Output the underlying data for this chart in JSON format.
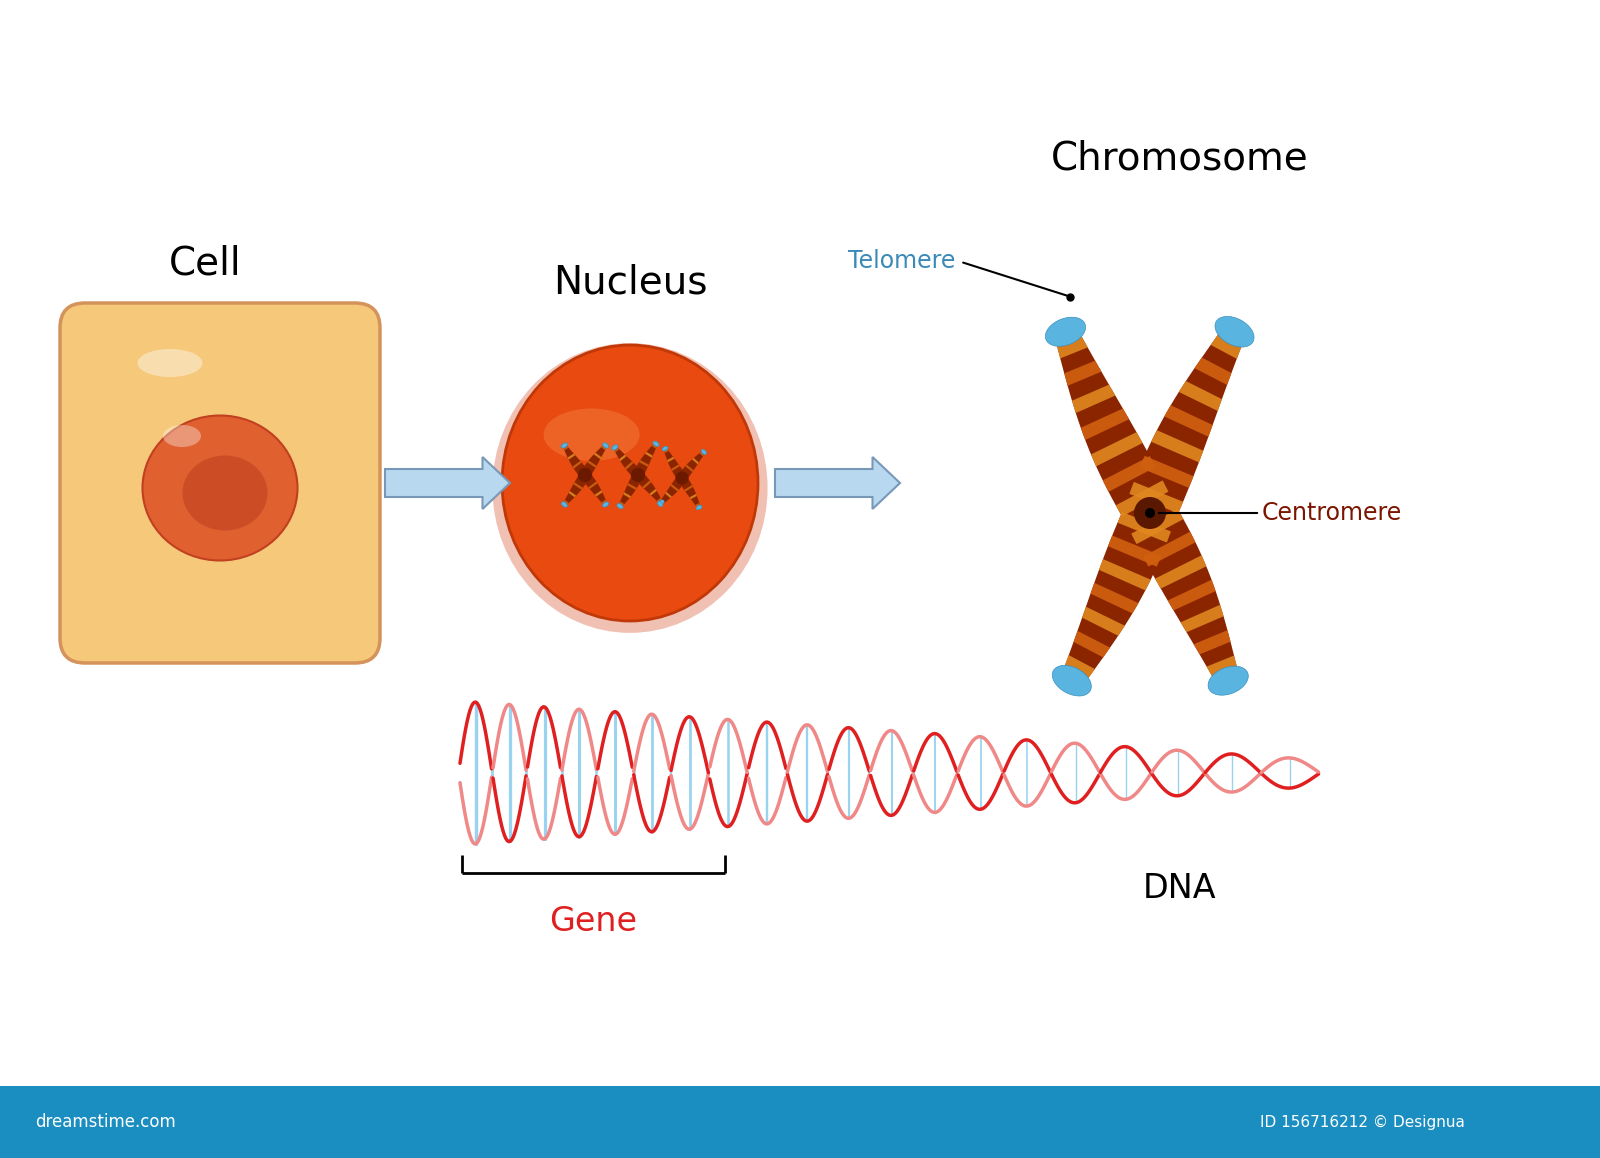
{
  "background_color": "#ffffff",
  "title_cell": "Cell",
  "title_nucleus": "Nucleus",
  "title_chromosome": "Chromosome",
  "label_telomere": "Telomere",
  "label_centromere": "Centromere",
  "label_gene": "Gene",
  "label_dna": "DNA",
  "cell_outer_color": "#F5C87A",
  "cell_border_color": "#D4935A",
  "cell_nucleus_color": "#E06030",
  "cell_nucleus_dark": "#C04020",
  "nucleus_outer_color": "#E84A10",
  "nucleus_highlight": "#F07838",
  "nucleus_edge": "#C03808",
  "chromosome_dark": "#6B1A00",
  "chromosome_body": "#8B2500",
  "chromosome_stripe": "#D06010",
  "chromosome_light_stripe": "#E08820",
  "telomere_color": "#5AB4E0",
  "telomere_dark": "#3A90C0",
  "centromere_color": "#5B1800",
  "arrow_fill": "#B8D8F0",
  "arrow_edge": "#7898B8",
  "dna_strand1_color": "#E02020",
  "dna_strand2_color": "#F08888",
  "dna_rung_color": "#88CCEE",
  "gene_label_color": "#E02020",
  "telomere_label_color": "#3A8AB8",
  "centromere_label_color": "#7B1500",
  "bottom_bar_color": "#1A8EC0",
  "label_fontsize": 28,
  "sublabel_fontsize": 17,
  "dna_label_fontsize": 24
}
